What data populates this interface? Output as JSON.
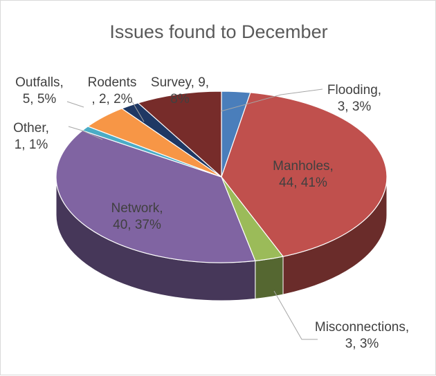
{
  "chart_data": {
    "type": "pie",
    "title": "Issues found to December",
    "slices": [
      {
        "label": "Flooding",
        "value": 3,
        "percent": "3%",
        "color": "#4a7ebb"
      },
      {
        "label": "Manholes",
        "value": 44,
        "percent": "41%",
        "color": "#c0504d"
      },
      {
        "label": "Misconnections",
        "value": 3,
        "percent": "3%",
        "color": "#9bbb59"
      },
      {
        "label": "Network",
        "value": 40,
        "percent": "37%",
        "color": "#8064a2"
      },
      {
        "label": "Other",
        "value": 1,
        "percent": "1%",
        "color": "#4bacc6"
      },
      {
        "label": "Outfalls",
        "value": 5,
        "percent": "5%",
        "color": "#f79646"
      },
      {
        "label": "Rodents",
        "value": 2,
        "percent": "2%",
        "color": "#1f3864"
      },
      {
        "label": "Survey",
        "value": 9,
        "percent": "8%",
        "color": "#772c2a"
      }
    ],
    "data_labels": [
      {
        "lines": [
          "Flooding,",
          "3, 3%"
        ]
      },
      {
        "lines": [
          "Manholes,",
          "44, 41%"
        ]
      },
      {
        "lines": [
          "Misconnections,",
          "3, 3%"
        ]
      },
      {
        "lines": [
          "Network,",
          "40, 37%"
        ]
      },
      {
        "lines": [
          "Other,",
          "1, 1%"
        ]
      },
      {
        "lines": [
          "Outfalls,",
          "5, 5%"
        ]
      },
      {
        "lines": [
          "Rodents",
          ", 2, 2%"
        ]
      },
      {
        "lines": [
          "Survey, 9,",
          "8%"
        ]
      }
    ]
  }
}
